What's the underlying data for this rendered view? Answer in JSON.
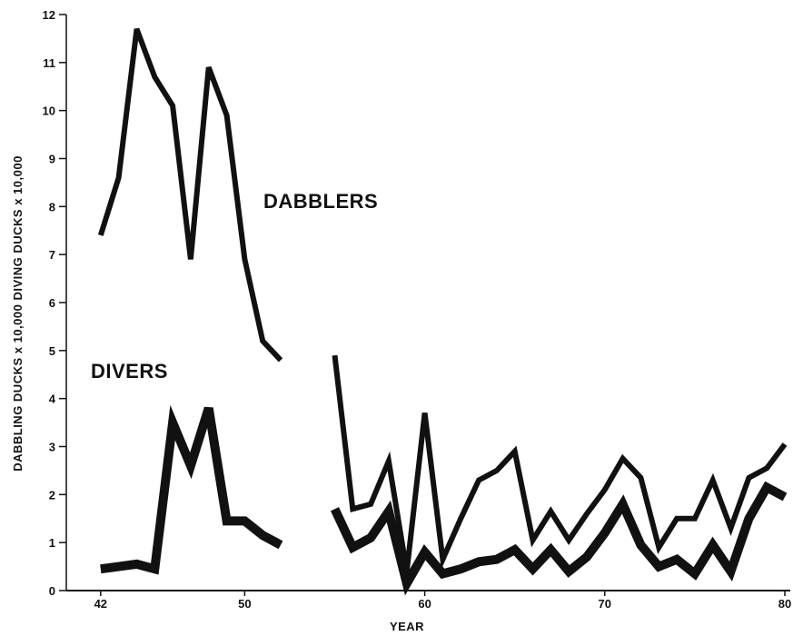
{
  "chart_data": {
    "type": "line",
    "title": "",
    "xlabel": "YEAR",
    "ylabel": "DABBLING DUCKS x 10,000   DIVING DUCKS x 10,000",
    "xlim": [
      41,
      80
    ],
    "ylim": [
      0,
      12
    ],
    "x_ticks": [
      42,
      50,
      60,
      70,
      80
    ],
    "y_ticks": [
      0,
      1,
      2,
      3,
      4,
      5,
      6,
      7,
      8,
      9,
      10,
      11,
      12
    ],
    "grid": false,
    "line_color": "#111111",
    "series": [
      {
        "name": "DABBLERS",
        "segments": [
          [
            [
              42,
              7.4
            ],
            [
              43,
              8.6
            ],
            [
              44,
              11.7
            ],
            [
              45,
              10.7
            ],
            [
              46,
              10.1
            ],
            [
              47,
              6.9
            ],
            [
              48,
              10.9
            ],
            [
              49,
              9.9
            ],
            [
              50,
              6.9
            ],
            [
              51,
              5.2
            ],
            [
              52,
              4.8
            ]
          ],
          [
            [
              55,
              4.9
            ],
            [
              56,
              1.7
            ],
            [
              57,
              1.8
            ],
            [
              58,
              2.7
            ],
            [
              59,
              0.4
            ],
            [
              60,
              3.7
            ],
            [
              61,
              0.65
            ],
            [
              62,
              1.5
            ],
            [
              63,
              2.3
            ],
            [
              64,
              2.5
            ],
            [
              65,
              2.9
            ],
            [
              66,
              1.05
            ],
            [
              67,
              1.65
            ],
            [
              68,
              1.05
            ],
            [
              69,
              1.6
            ],
            [
              70,
              2.1
            ],
            [
              71,
              2.75
            ],
            [
              72,
              2.35
            ],
            [
              73,
              0.9
            ],
            [
              74,
              1.5
            ],
            [
              75,
              1.5
            ],
            [
              76,
              2.3
            ],
            [
              77,
              1.3
            ],
            [
              78,
              2.35
            ],
            [
              79,
              2.55
            ],
            [
              80,
              3.05
            ]
          ]
        ]
      },
      {
        "name": "DIVERS",
        "segments": [
          [
            [
              42,
              0.45
            ],
            [
              43,
              0.5
            ],
            [
              44,
              0.55
            ],
            [
              45,
              0.45
            ],
            [
              46,
              3.5
            ],
            [
              47,
              2.6
            ],
            [
              48,
              3.8
            ],
            [
              49,
              1.45
            ],
            [
              50,
              1.45
            ],
            [
              51,
              1.15
            ],
            [
              52,
              0.95
            ]
          ],
          [
            [
              55,
              1.7
            ],
            [
              56,
              0.9
            ],
            [
              57,
              1.1
            ],
            [
              58,
              1.65
            ],
            [
              59,
              0.15
            ],
            [
              60,
              0.8
            ],
            [
              61,
              0.35
            ],
            [
              62,
              0.45
            ],
            [
              63,
              0.6
            ],
            [
              64,
              0.65
            ],
            [
              65,
              0.85
            ],
            [
              66,
              0.45
            ],
            [
              67,
              0.85
            ],
            [
              68,
              0.4
            ],
            [
              69,
              0.7
            ],
            [
              70,
              1.2
            ],
            [
              71,
              1.8
            ],
            [
              72,
              0.95
            ],
            [
              73,
              0.5
            ],
            [
              74,
              0.65
            ],
            [
              75,
              0.35
            ],
            [
              76,
              0.95
            ],
            [
              77,
              0.4
            ],
            [
              78,
              1.5
            ],
            [
              79,
              2.15
            ],
            [
              80,
              1.95
            ]
          ]
        ]
      }
    ]
  }
}
